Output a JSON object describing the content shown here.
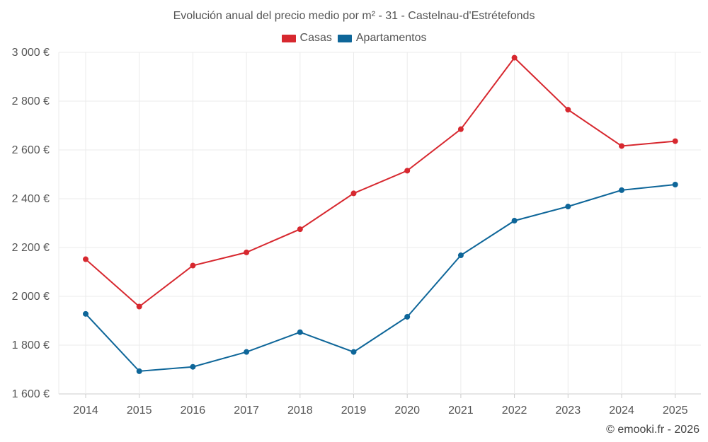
{
  "chart_data": {
    "type": "line",
    "title": "Evolución anual del precio medio por m² - 31 - Castelnau-d'Estrétefonds",
    "xlabel": "",
    "ylabel": "",
    "categories": [
      "2014",
      "2015",
      "2016",
      "2017",
      "2018",
      "2019",
      "2020",
      "2021",
      "2022",
      "2023",
      "2024",
      "2025"
    ],
    "ylim": [
      1600,
      3000
    ],
    "yticks": [
      1600,
      1800,
      2000,
      2200,
      2400,
      2600,
      2800,
      3000
    ],
    "ytick_labels": [
      "1 600 €",
      "1 800 €",
      "2 000 €",
      "2 200 €",
      "2 400 €",
      "2 600 €",
      "2 800 €",
      "3 000 €"
    ],
    "grid": true,
    "legend_position": "top-center",
    "series": [
      {
        "name": "Casas",
        "color": "#d7282f",
        "values": [
          2152,
          1958,
          2126,
          2180,
          2275,
          2422,
          2515,
          2685,
          2978,
          2765,
          2616,
          2636
        ]
      },
      {
        "name": "Apartamentos",
        "color": "#0e6699",
        "values": [
          1928,
          1693,
          1711,
          1772,
          1853,
          1772,
          1916,
          2168,
          2310,
          2368,
          2435,
          2458
        ]
      }
    ]
  },
  "credit": "© emooki.fr - 2026"
}
